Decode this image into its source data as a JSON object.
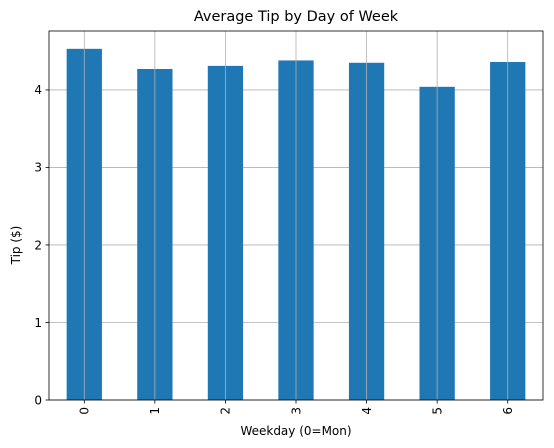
{
  "chart_data": {
    "type": "bar",
    "title": "Average Tip by Day of Week",
    "xlabel": "Weekday (0=Mon)",
    "ylabel": "Tip ($)",
    "categories": [
      "0",
      "1",
      "2",
      "3",
      "4",
      "5",
      "6"
    ],
    "values": [
      4.53,
      4.27,
      4.31,
      4.38,
      4.35,
      4.04,
      4.36
    ],
    "ylim": [
      0,
      4.76
    ],
    "yticks": [
      0,
      1,
      2,
      3,
      4
    ],
    "ytick_labels": [
      "0",
      "1",
      "2",
      "3",
      "4"
    ],
    "xtick_rotation": "vertical",
    "grid": true,
    "legend": "none",
    "bar_color": "#1f77b4",
    "grid_color": "#b0b0b0"
  }
}
